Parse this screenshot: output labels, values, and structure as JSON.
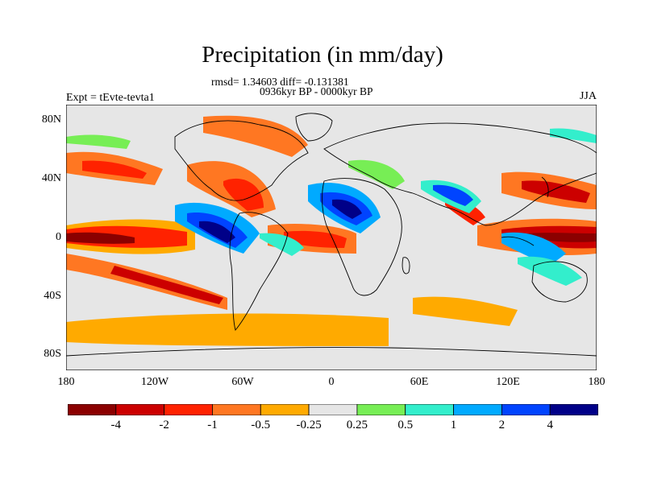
{
  "header": {
    "title": "Precipitation (in mm/day)",
    "stats": "rmsd= 1.34603 diff= -0.131381",
    "period": "0936kyr BP - 0000kyr BP",
    "experiment": "Expt = tEvte-tevta1",
    "season": "JJA"
  },
  "map": {
    "lat_labels": [
      "80N",
      "40N",
      "0",
      "40S",
      "80S"
    ],
    "lon_labels": [
      "180",
      "120W",
      "60W",
      "0",
      "60E",
      "120E",
      "180"
    ],
    "background": "#e6e6e6"
  },
  "colorbar": {
    "levels": [
      "-4",
      "-2",
      "-1",
      "-0.5",
      "-0.25",
      "0.25",
      "0.5",
      "1",
      "2",
      "4"
    ],
    "colors": [
      "#8b0000",
      "#cc0000",
      "#ff2200",
      "#ff7722",
      "#ffaa00",
      "#e6e6e6",
      "#77ee55",
      "#33eecc",
      "#00aaff",
      "#0044ff",
      "#000088"
    ]
  }
}
